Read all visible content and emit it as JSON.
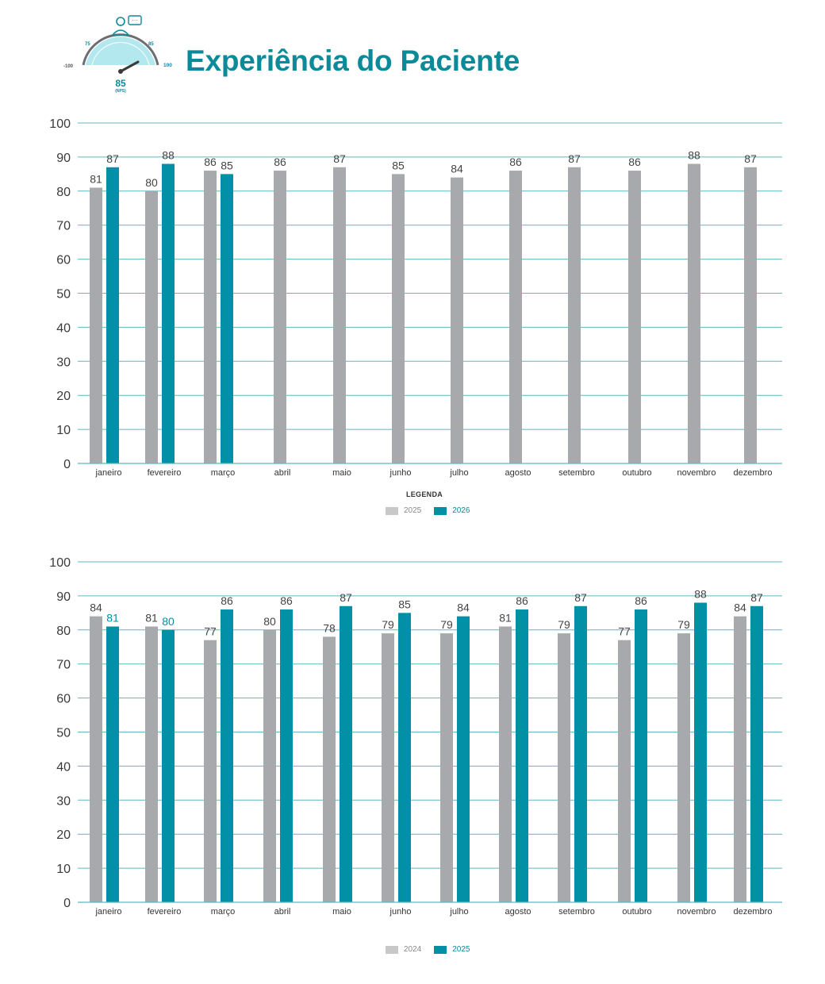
{
  "header": {
    "title": "Experiência do Paciente",
    "gauge": {
      "min_label": "-100",
      "max_label": "100",
      "mark_a_label": "75",
      "mark_b_label": "85",
      "value_label": "85",
      "unit_label": "(NPS)",
      "value": 85
    }
  },
  "colors": {
    "accent": "#0d8a99",
    "bar_gray": "#a8a9ad",
    "bar_teal": "#0190a5",
    "grid": "#5fb7c2",
    "legend_gray": "#c8c8c8"
  },
  "chart_data": [
    {
      "type": "bar",
      "categories": [
        "janeiro",
        "fevereiro",
        "março",
        "abril",
        "maio",
        "junho",
        "julho",
        "agosto",
        "setembro",
        "outubro",
        "novembro",
        "dezembro"
      ],
      "series": [
        {
          "name": "2025",
          "values": [
            81,
            80,
            86,
            86,
            87,
            85,
            84,
            86,
            87,
            86,
            88,
            87
          ]
        },
        {
          "name": "2026",
          "values": [
            87,
            88,
            85,
            null,
            null,
            null,
            null,
            null,
            null,
            null,
            null,
            null
          ]
        }
      ],
      "yticks": [
        0,
        10,
        20,
        30,
        40,
        50,
        60,
        70,
        80,
        90,
        100
      ],
      "ylim": [
        0,
        100
      ],
      "legend_title": "LEGENDA",
      "legend": [
        "2025",
        "2026"
      ]
    },
    {
      "type": "bar",
      "categories": [
        "janeiro",
        "fevereiro",
        "março",
        "abril",
        "maio",
        "junho",
        "julho",
        "agosto",
        "setembro",
        "outubro",
        "novembro",
        "dezembro"
      ],
      "series": [
        {
          "name": "2024",
          "values": [
            84,
            81,
            77,
            80,
            78,
            79,
            79,
            81,
            79,
            77,
            79,
            84
          ]
        },
        {
          "name": "2025",
          "values": [
            81,
            80,
            86,
            86,
            87,
            85,
            84,
            86,
            87,
            86,
            88,
            87
          ]
        }
      ],
      "yticks": [
        0,
        10,
        20,
        30,
        40,
        50,
        60,
        70,
        80,
        90,
        100
      ],
      "ylim": [
        0,
        100
      ],
      "legend_title": "",
      "legend": [
        "2024",
        "2025"
      ]
    }
  ]
}
